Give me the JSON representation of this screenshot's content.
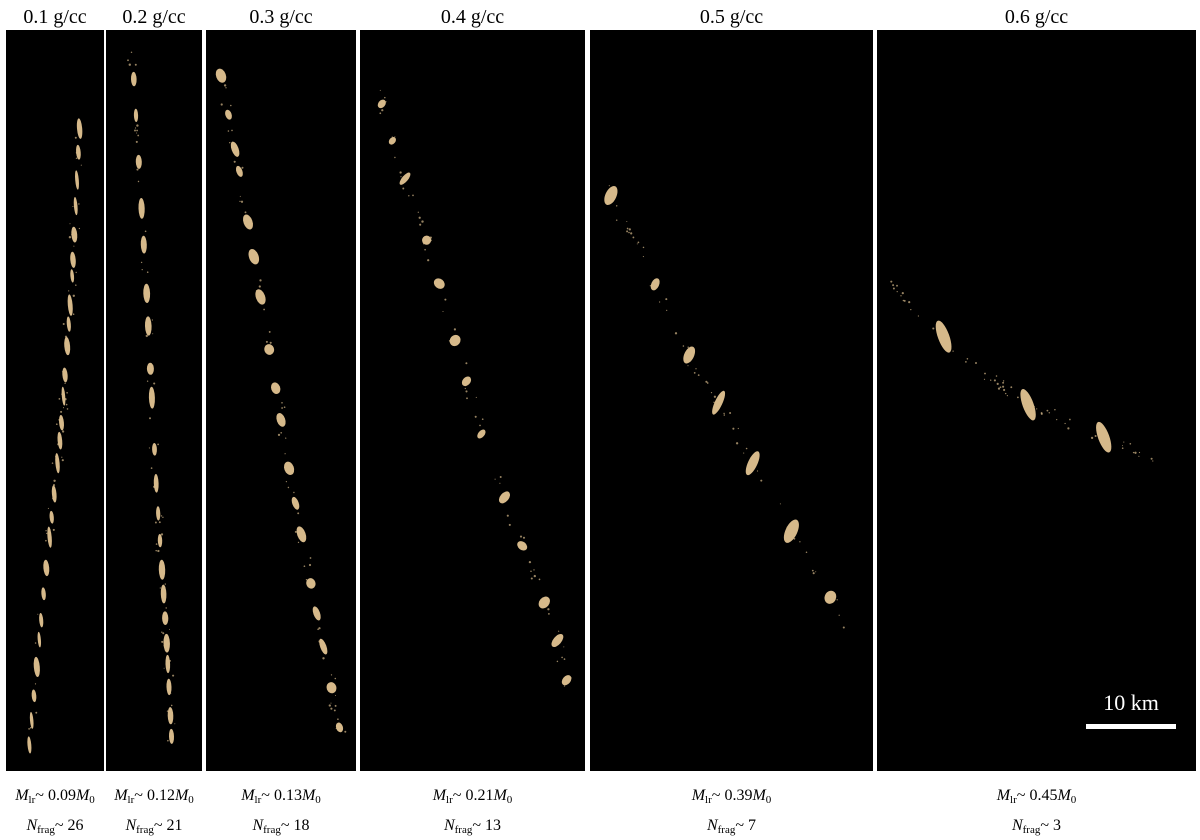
{
  "panels": [
    {
      "title": "0.1 g/cc",
      "mass_label": "M",
      "mass_sub": "lr",
      "mass_rel": "~ 0.09",
      "mass_ref": "M",
      "mass_ref_sub": "0",
      "frag_label": "N",
      "frag_sub": "frag",
      "frag_rel": "~ 26",
      "n_frag": 26
    },
    {
      "title": "0.2 g/cc",
      "mass_label": "M",
      "mass_sub": "lr",
      "mass_rel": "~ 0.12",
      "mass_ref": "M",
      "mass_ref_sub": "0",
      "frag_label": "N",
      "frag_sub": "frag",
      "frag_rel": "~ 21",
      "n_frag": 21
    },
    {
      "title": "0.3 g/cc",
      "mass_label": "M",
      "mass_sub": "lr",
      "mass_rel": "~ 0.13",
      "mass_ref": "M",
      "mass_ref_sub": "0",
      "frag_label": "N",
      "frag_sub": "frag",
      "frag_rel": "~ 18",
      "n_frag": 18
    },
    {
      "title": "0.4 g/cc",
      "mass_label": "M",
      "mass_sub": "lr",
      "mass_rel": "~ 0.21",
      "mass_ref": "M",
      "mass_ref_sub": "0",
      "frag_label": "N",
      "frag_sub": "frag",
      "frag_rel": "~ 13",
      "n_frag": 13
    },
    {
      "title": "0.5 g/cc",
      "mass_label": "M",
      "mass_sub": "lr",
      "mass_rel": "~ 0.39",
      "mass_ref": "M",
      "mass_ref_sub": "0",
      "frag_label": "N",
      "frag_sub": "frag",
      "frag_rel": "~ 7",
      "n_frag": 7
    },
    {
      "title": "0.6 g/cc",
      "mass_label": "M",
      "mass_sub": "lr",
      "mass_rel": "~ 0.45",
      "mass_ref": "M",
      "mass_ref_sub": "0",
      "frag_label": "N",
      "frag_sub": "frag",
      "frag_rel": "~ 3",
      "n_frag": 3
    }
  ],
  "scale_bar": {
    "label": "10 km"
  },
  "colors": {
    "background": "#000000",
    "fragment": "#d6b98a",
    "page": "#ffffff"
  }
}
